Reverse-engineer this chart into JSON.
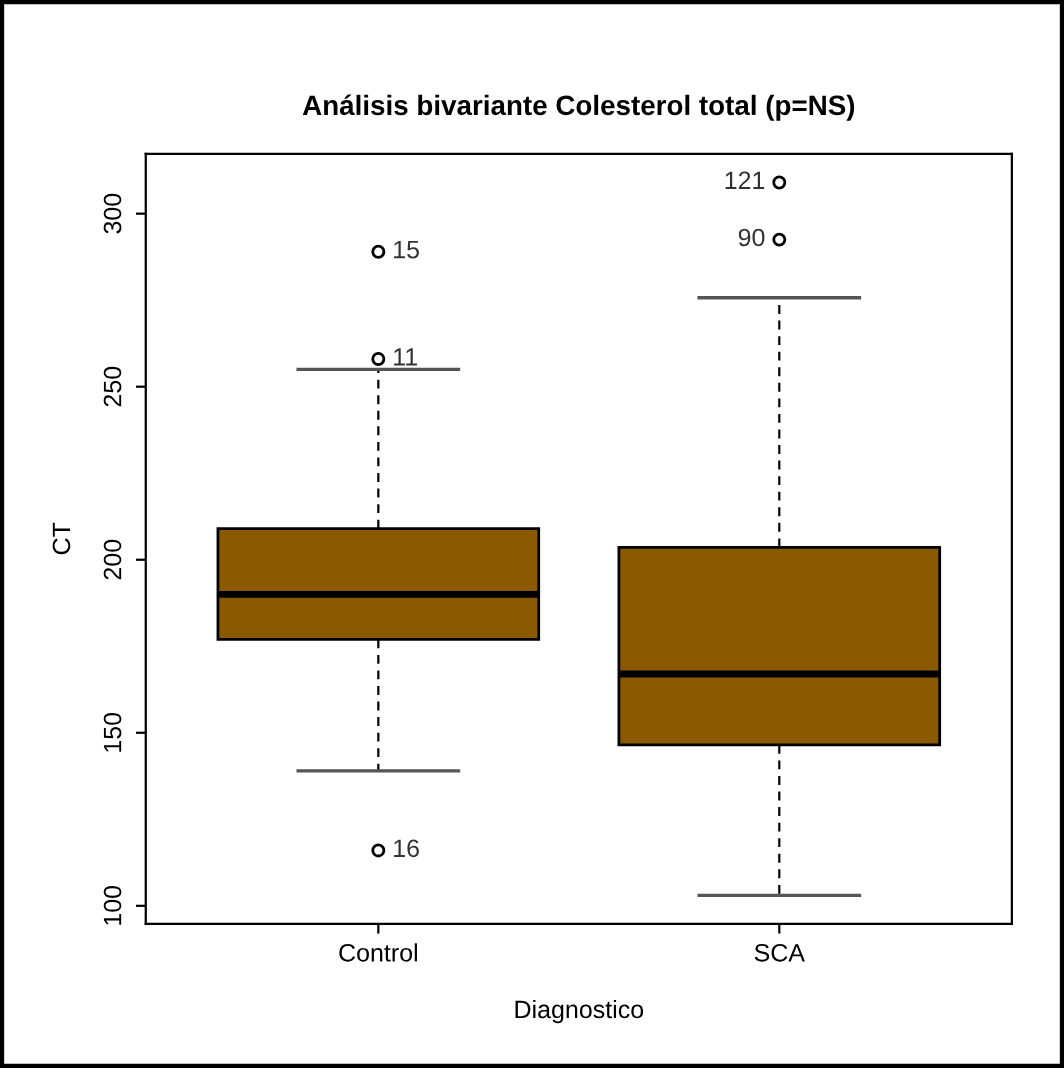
{
  "chart_data": {
    "type": "box",
    "title": "Análisis bivariante Colesterol total (p=NS)",
    "xlabel": "Diagnostico",
    "ylabel": "CT",
    "categories": [
      "Control",
      "SCA"
    ],
    "color": "#8b5a00",
    "boxes": [
      {
        "low": 139,
        "q1": 177,
        "median": 190,
        "q3": 209,
        "high": 255
      },
      {
        "low": 103,
        "q1": 146.5,
        "median": 167,
        "q3": 203.6,
        "high": 275.7
      }
    ],
    "series": [
      {
        "type": "scatter",
        "color": "#000000",
        "marker": "circle",
        "x": [
          "Control",
          "Control",
          "Control",
          "SCA",
          "SCA"
        ],
        "values": [
          289,
          258,
          116,
          309,
          292.5
        ]
      }
    ],
    "ylim": [
      94.8,
      317.3
    ],
    "yticks": [
      100,
      150,
      200,
      250,
      300
    ],
    "grid": false,
    "legend": false,
    "annotations": [
      {
        "text": "15",
        "x": "Control",
        "y": 289
      },
      {
        "text": "11",
        "x": "Control",
        "y": 258
      },
      {
        "text": "16",
        "x": "Control",
        "y": 116
      },
      {
        "text": "121",
        "x": "SCA",
        "y": 309
      },
      {
        "text": "90",
        "x": "SCA",
        "y": 292.5
      }
    ]
  }
}
